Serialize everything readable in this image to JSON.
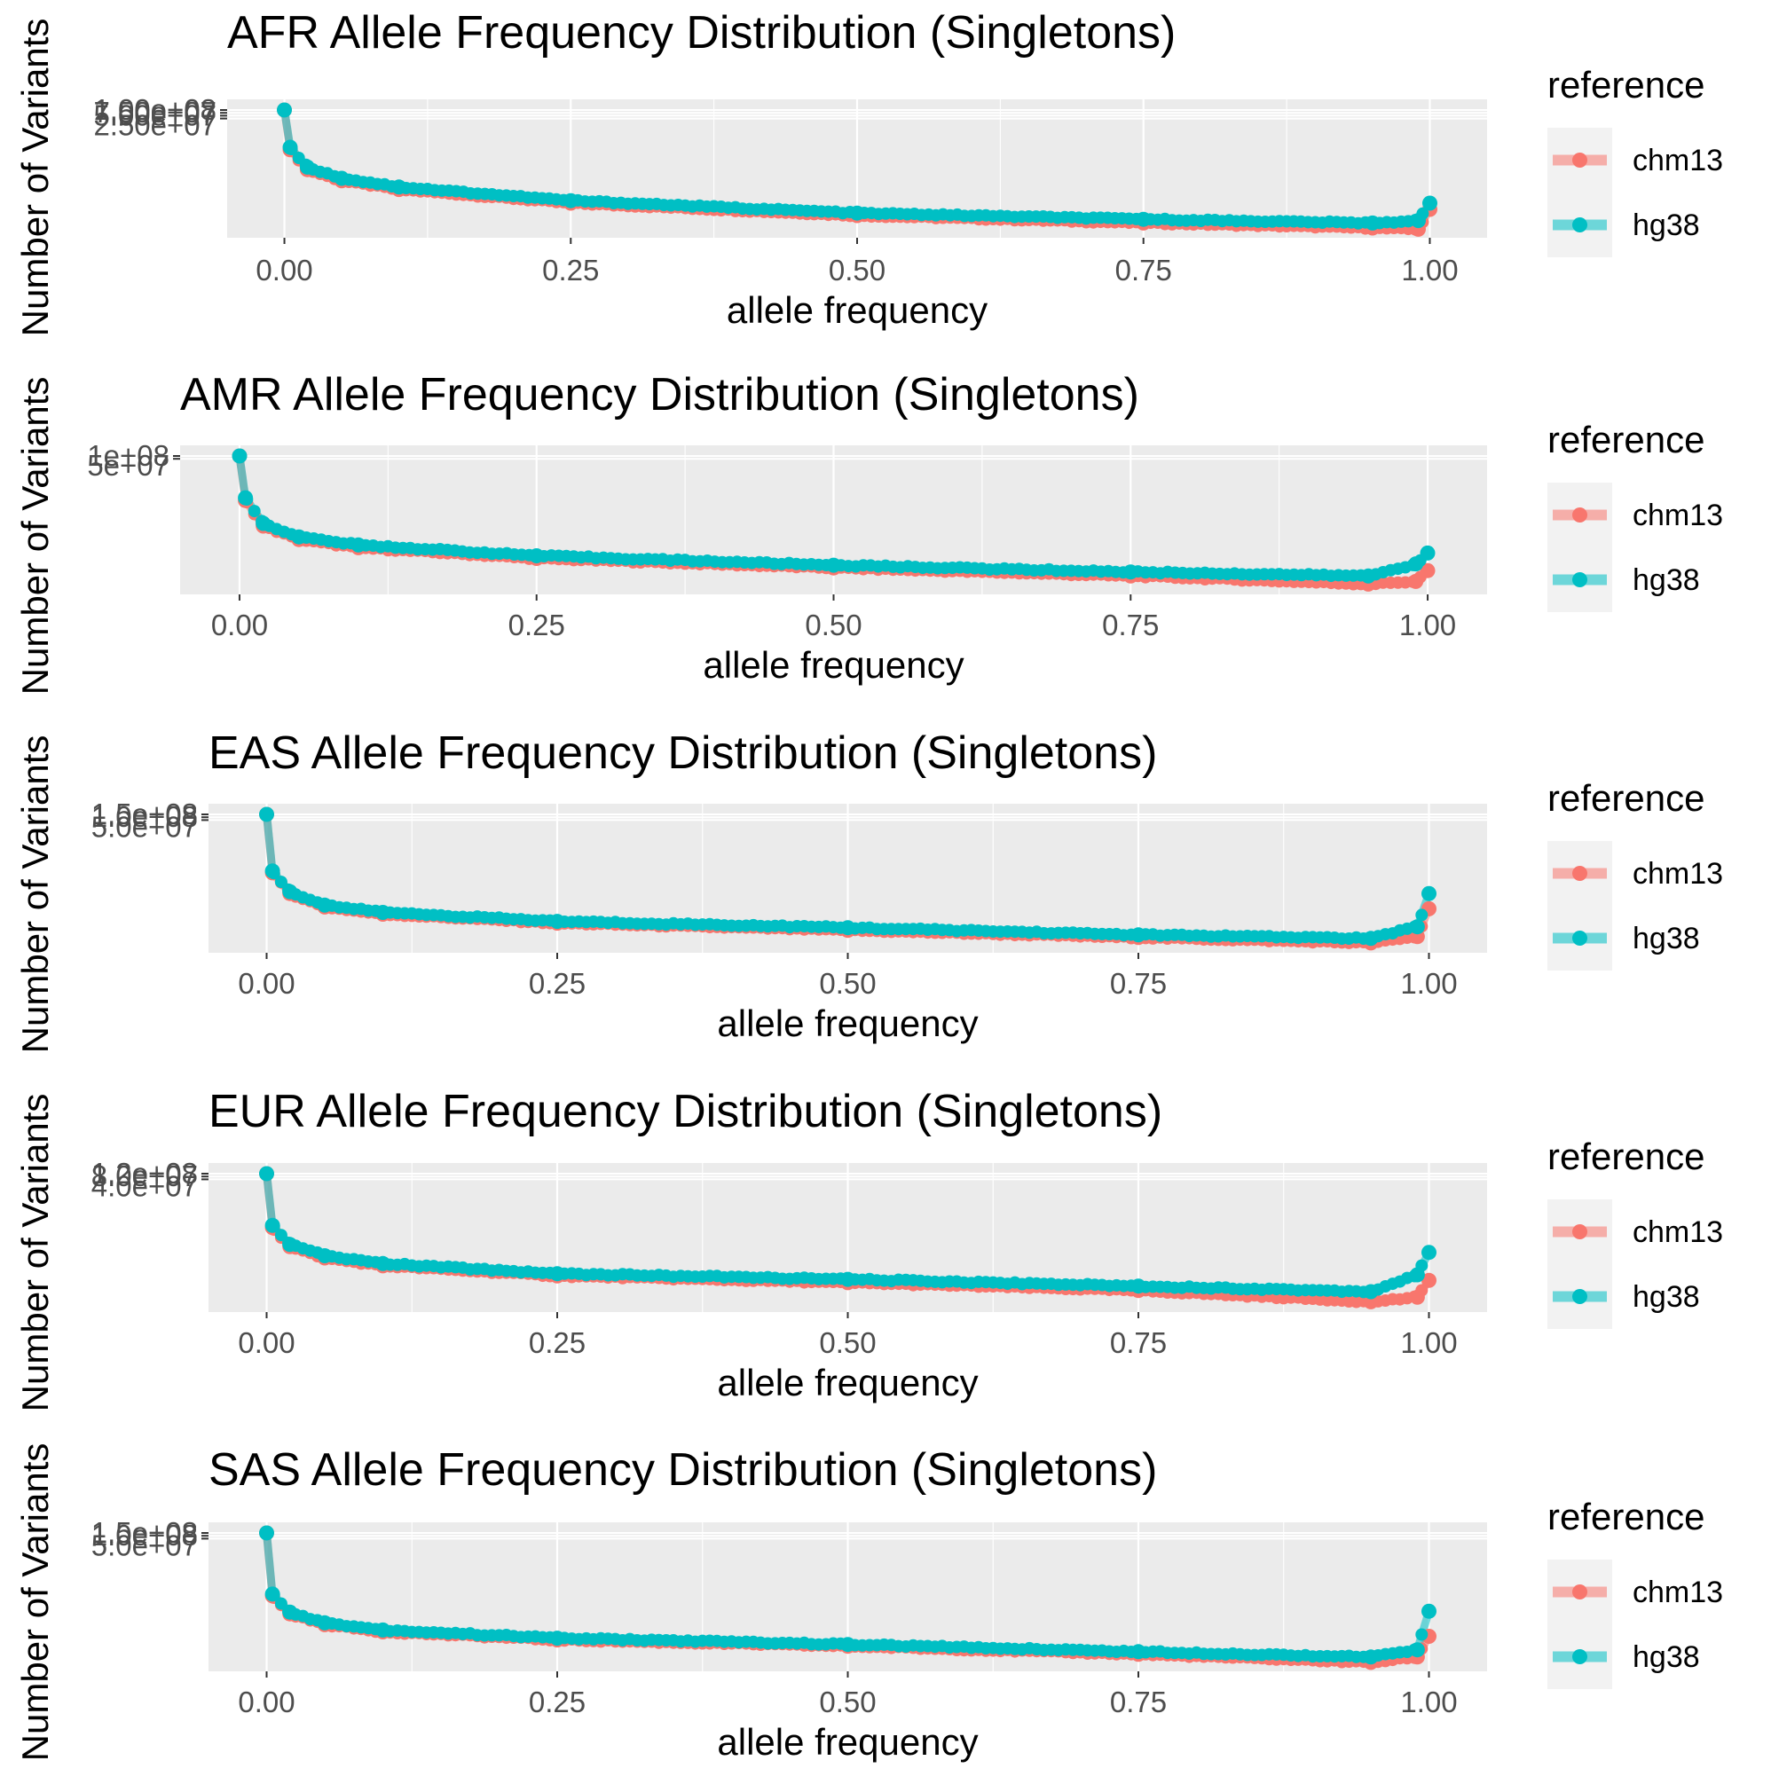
{
  "colors": {
    "chm13": "#F8766D",
    "hg38": "#00BFC4",
    "panel_bg": "#EBEBEB",
    "grid": "#FFFFFF"
  },
  "chart_data": [
    {
      "type": "line",
      "title": "AFR Allele Frequency Distribution (Singletons)",
      "xlabel": "allele frequency",
      "ylabel": "Number of Variants",
      "xlim": [
        -0.05,
        1.05
      ],
      "x_ticks": [
        "0.00",
        "0.25",
        "0.50",
        "0.75",
        "1.00"
      ],
      "y_tick_labels": [
        "1.00e+08",
        "7.50e+07",
        "5.00e+07",
        "2.50e+07"
      ],
      "ylim": [
        0,
        100000000
      ],
      "legend": {
        "title": "reference",
        "position": "right",
        "items": [
          "chm13",
          "hg38"
        ]
      },
      "series": [
        {
          "name": "chm13",
          "x": [
            0.0,
            0.005,
            0.02,
            0.05,
            0.1,
            0.25,
            0.5,
            0.75,
            0.95,
            0.99,
            1.0
          ],
          "y": [
            100000000,
            68000000,
            52000000,
            43000000,
            36000000,
            25000000,
            15000000,
            9000000,
            5000000,
            4000000,
            20000000
          ]
        },
        {
          "name": "hg38",
          "x": [
            0.0,
            0.005,
            0.02,
            0.05,
            0.1,
            0.25,
            0.5,
            0.75,
            0.95,
            0.99,
            1.0
          ],
          "y": [
            100000000,
            70000000,
            54000000,
            45000000,
            38000000,
            27000000,
            17000000,
            12000000,
            9000000,
            11000000,
            25000000
          ]
        }
      ]
    },
    {
      "type": "line",
      "title": "AMR Allele Frequency Distribution (Singletons)",
      "xlabel": "allele frequency",
      "ylabel": "Number of Variants",
      "xlim": [
        -0.05,
        1.05
      ],
      "x_ticks": [
        "0.00",
        "0.25",
        "0.50",
        "0.75",
        "1.00"
      ],
      "y_tick_labels": [
        "1e+08",
        "5e+07"
      ],
      "ylim": [
        0,
        100000000
      ],
      "legend": {
        "title": "reference",
        "position": "right",
        "items": [
          "chm13",
          "hg38"
        ]
      },
      "series": [
        {
          "name": "chm13",
          "x": [
            0.0,
            0.005,
            0.02,
            0.05,
            0.1,
            0.25,
            0.5,
            0.75,
            0.95,
            0.99,
            1.0
          ],
          "y": [
            100000000,
            67000000,
            48000000,
            38000000,
            32000000,
            24000000,
            17000000,
            11000000,
            5000000,
            7000000,
            15000000
          ]
        },
        {
          "name": "hg38",
          "x": [
            0.0,
            0.005,
            0.02,
            0.05,
            0.1,
            0.25,
            0.5,
            0.75,
            0.95,
            0.99,
            1.0
          ],
          "y": [
            100000000,
            69000000,
            50000000,
            40000000,
            34000000,
            26000000,
            19000000,
            14000000,
            11000000,
            20000000,
            28000000
          ]
        }
      ]
    },
    {
      "type": "line",
      "title": "EAS Allele Frequency Distribution (Singletons)",
      "xlabel": "allele frequency",
      "ylabel": "Number of Variants",
      "xlim": [
        -0.05,
        1.05
      ],
      "x_ticks": [
        "0.00",
        "0.25",
        "0.50",
        "0.75",
        "1.00"
      ],
      "y_tick_labels": [
        "1.5e+08",
        "1.0e+08",
        "5.0e+07"
      ],
      "ylim": [
        0,
        150000000
      ],
      "legend": {
        "title": "reference",
        "position": "right",
        "items": [
          "chm13",
          "hg38"
        ]
      },
      "series": [
        {
          "name": "chm13",
          "x": [
            0.0,
            0.005,
            0.02,
            0.05,
            0.1,
            0.25,
            0.5,
            0.75,
            0.95,
            0.99,
            1.0
          ],
          "y": [
            150000000,
            85000000,
            62000000,
            47000000,
            39000000,
            29000000,
            21000000,
            13000000,
            7000000,
            14000000,
            45000000
          ]
        },
        {
          "name": "hg38",
          "x": [
            0.0,
            0.005,
            0.02,
            0.05,
            0.1,
            0.25,
            0.5,
            0.75,
            0.95,
            0.99,
            1.0
          ],
          "y": [
            150000000,
            87000000,
            64000000,
            49000000,
            41000000,
            31000000,
            24000000,
            16000000,
            12000000,
            25000000,
            62000000
          ]
        }
      ]
    },
    {
      "type": "line",
      "title": "EUR Allele Frequency Distribution (Singletons)",
      "xlabel": "allele frequency",
      "ylabel": "Number of Variants",
      "xlim": [
        -0.05,
        1.05
      ],
      "x_ticks": [
        "0.00",
        "0.25",
        "0.50",
        "0.75",
        "1.00"
      ],
      "y_tick_labels": [
        "1.2e+08",
        "8.0e+07",
        "4.0e+07"
      ],
      "ylim": [
        0,
        120000000
      ],
      "legend": {
        "title": "reference",
        "position": "right",
        "items": [
          "chm13",
          "hg38"
        ]
      },
      "series": [
        {
          "name": "chm13",
          "x": [
            0.0,
            0.005,
            0.02,
            0.05,
            0.1,
            0.25,
            0.5,
            0.75,
            0.95,
            0.99,
            1.0
          ],
          "y": [
            120000000,
            72000000,
            55000000,
            45000000,
            38000000,
            29000000,
            23000000,
            16000000,
            6000000,
            10000000,
            25000000
          ]
        },
        {
          "name": "hg38",
          "x": [
            0.0,
            0.005,
            0.02,
            0.05,
            0.1,
            0.25,
            0.5,
            0.75,
            0.95,
            0.99,
            1.0
          ],
          "y": [
            120000000,
            74000000,
            57000000,
            47000000,
            40000000,
            31000000,
            26000000,
            20000000,
            15000000,
            30000000,
            50000000
          ]
        }
      ]
    },
    {
      "type": "line",
      "title": "SAS Allele Frequency Distribution (Singletons)",
      "xlabel": "allele frequency",
      "ylabel": "Number of Variants",
      "xlim": [
        -0.05,
        1.05
      ],
      "x_ticks": [
        "0.00",
        "0.25",
        "0.50",
        "0.75",
        "1.00"
      ],
      "y_tick_labels": [
        "1.5e+08",
        "1.0e+08",
        "5.0e+07"
      ],
      "ylim": [
        0,
        150000000
      ],
      "legend": {
        "title": "reference",
        "position": "right",
        "items": [
          "chm13",
          "hg38"
        ]
      },
      "series": [
        {
          "name": "chm13",
          "x": [
            0.0,
            0.005,
            0.02,
            0.05,
            0.1,
            0.25,
            0.5,
            0.75,
            0.95,
            0.99,
            1.0
          ],
          "y": [
            150000000,
            80000000,
            60000000,
            48000000,
            40000000,
            31000000,
            24000000,
            15000000,
            6000000,
            12000000,
            35000000
          ]
        },
        {
          "name": "hg38",
          "x": [
            0.0,
            0.005,
            0.02,
            0.05,
            0.1,
            0.25,
            0.5,
            0.75,
            0.95,
            0.99,
            1.0
          ],
          "y": [
            150000000,
            82000000,
            62000000,
            50000000,
            42000000,
            33000000,
            26000000,
            18000000,
            12000000,
            20000000,
            63000000
          ]
        }
      ]
    }
  ]
}
